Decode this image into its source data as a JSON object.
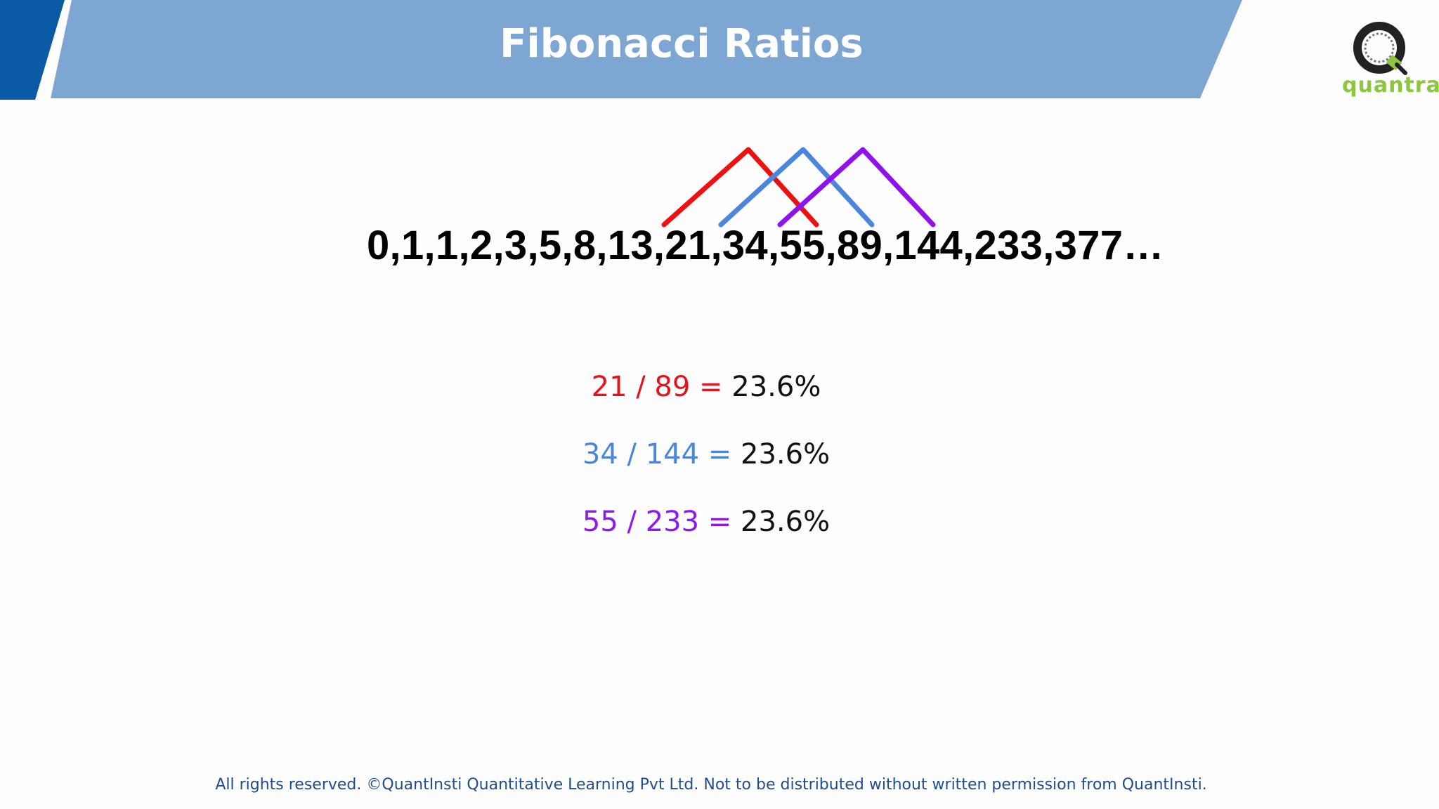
{
  "header": {
    "title": "Fibonacci Ratios"
  },
  "logo": {
    "text": "quantra"
  },
  "sequence": {
    "text": "0,1,1,2,3,5,8,13,21,34,55,89,144,233,377…"
  },
  "ratios": [
    {
      "expression": "21 / 89 =",
      "result": "23.6%",
      "color": "#e3141b"
    },
    {
      "expression": "34 / 144 =",
      "result": "23.6%",
      "color": "#4a86dc"
    },
    {
      "expression": "55 / 233 =",
      "result": "23.6%",
      "color": "#8f17f0"
    }
  ],
  "bracket_colors": [
    "#ee1111",
    "#4a86dc",
    "#9111ee"
  ],
  "footer": {
    "text": "All rights reserved. ©QuantInsti Quantitative Learning Pvt Ltd. Not to be distributed without written permission from QuantInsti."
  }
}
